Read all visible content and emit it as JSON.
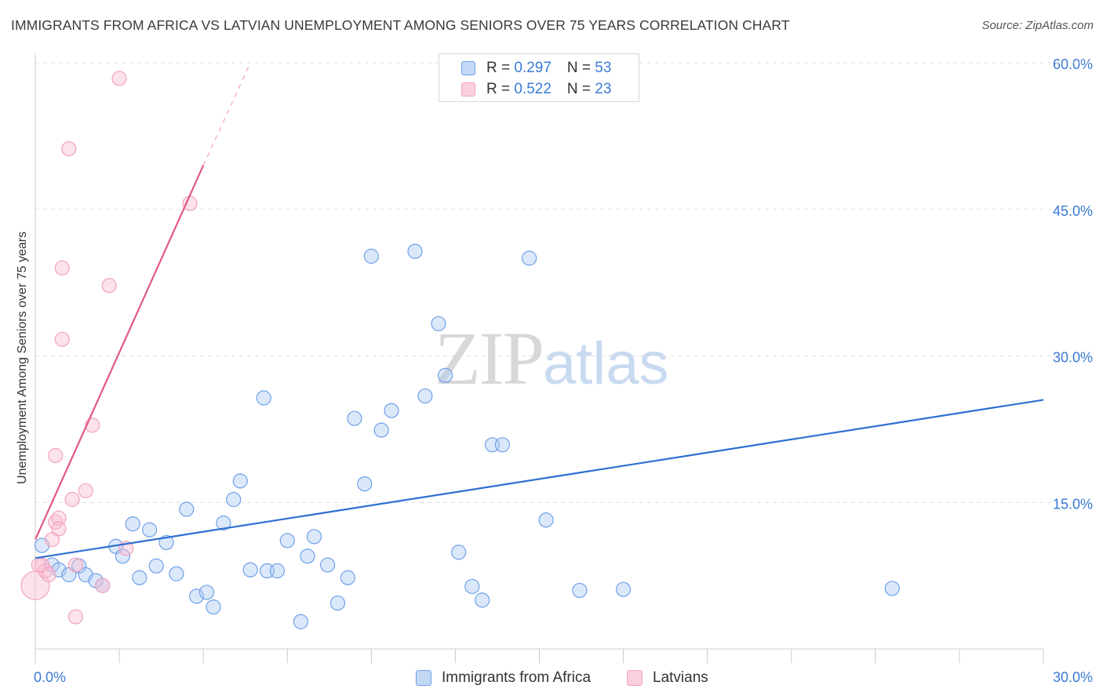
{
  "header": {
    "title": "IMMIGRANTS FROM AFRICA VS LATVIAN UNEMPLOYMENT AMONG SENIORS OVER 75 YEARS CORRELATION CHART",
    "source": "Source: ZipAtlas.com"
  },
  "watermark": {
    "zip": "ZIP",
    "atlas": "atlas"
  },
  "legend": {
    "rows": [
      {
        "r_label": "R = ",
        "r_value": "0.297",
        "n_label": "N = ",
        "n_value": "53"
      },
      {
        "r_label": "R = ",
        "r_value": "0.522",
        "n_label": "N = ",
        "n_value": "23"
      }
    ]
  },
  "bottom_legend": [
    "Immigrants from Africa",
    "Latvians"
  ],
  "chart_data": {
    "type": "scatter",
    "title": "IMMIGRANTS FROM AFRICA VS LATVIAN UNEMPLOYMENT AMONG SENIORS OVER 75 YEARS CORRELATION CHART",
    "xlabel": "",
    "ylabel": "Unemployment Among Seniors over 75 years",
    "xlim": [
      0,
      30
    ],
    "ylim": [
      0,
      60
    ],
    "x_tick_labels": [
      "0.0%",
      "30.0%"
    ],
    "y_tick_labels": [
      "15.0%",
      "30.0%",
      "45.0%",
      "60.0%"
    ],
    "y_ticks": [
      15,
      30,
      45,
      60
    ],
    "grid": "horizontal dashed",
    "colors": {
      "africa": "#6fa1e8",
      "africa_line": "#2e6fd1",
      "latvians": "#f2a3bd",
      "latvians_line": "#e0578a",
      "tick_text": "#3a7bd5"
    },
    "series": [
      {
        "name": "Immigrants from Africa",
        "r": 0.297,
        "n": 53,
        "points": [
          [
            0.2,
            10.6
          ],
          [
            0.5,
            8.6
          ],
          [
            0.7,
            8.1
          ],
          [
            1.0,
            7.6
          ],
          [
            1.3,
            8.5
          ],
          [
            1.5,
            7.6
          ],
          [
            1.8,
            7.0
          ],
          [
            2.0,
            6.5
          ],
          [
            2.4,
            10.5
          ],
          [
            2.6,
            9.5
          ],
          [
            2.9,
            12.8
          ],
          [
            3.1,
            7.3
          ],
          [
            3.4,
            12.2
          ],
          [
            3.6,
            8.5
          ],
          [
            3.9,
            10.9
          ],
          [
            4.2,
            7.7
          ],
          [
            4.5,
            14.3
          ],
          [
            4.8,
            5.4
          ],
          [
            5.1,
            5.8
          ],
          [
            5.3,
            4.3
          ],
          [
            5.6,
            12.9
          ],
          [
            5.9,
            15.3
          ],
          [
            6.1,
            17.2
          ],
          [
            6.4,
            8.1
          ],
          [
            6.8,
            25.7
          ],
          [
            6.9,
            8.0
          ],
          [
            7.2,
            8.0
          ],
          [
            7.5,
            11.1
          ],
          [
            7.9,
            2.8
          ],
          [
            8.1,
            9.5
          ],
          [
            8.3,
            11.5
          ],
          [
            8.7,
            8.6
          ],
          [
            9.0,
            4.7
          ],
          [
            9.3,
            7.3
          ],
          [
            9.5,
            23.6
          ],
          [
            9.8,
            16.9
          ],
          [
            10.0,
            40.2
          ],
          [
            10.3,
            22.4
          ],
          [
            10.6,
            24.4
          ],
          [
            11.3,
            40.7
          ],
          [
            11.6,
            25.9
          ],
          [
            12.0,
            33.3
          ],
          [
            12.2,
            28.0
          ],
          [
            12.6,
            9.9
          ],
          [
            13.0,
            6.4
          ],
          [
            13.3,
            5.0
          ],
          [
            13.6,
            20.9
          ],
          [
            13.9,
            20.9
          ],
          [
            14.7,
            40.0
          ],
          [
            15.2,
            13.2
          ],
          [
            16.2,
            6.0
          ],
          [
            17.5,
            6.1
          ],
          [
            25.5,
            6.2
          ]
        ],
        "trend": [
          [
            0,
            9.3
          ],
          [
            30,
            25.5
          ]
        ]
      },
      {
        "name": "Latvians",
        "r": 0.522,
        "n": 23,
        "points": [
          [
            0.0,
            6.5
          ],
          [
            0.2,
            8.6
          ],
          [
            0.3,
            8.0
          ],
          [
            0.4,
            7.6
          ],
          [
            0.5,
            11.2
          ],
          [
            0.6,
            13.0
          ],
          [
            0.6,
            19.8
          ],
          [
            0.7,
            13.4
          ],
          [
            0.7,
            12.3
          ],
          [
            0.8,
            39.0
          ],
          [
            0.8,
            31.7
          ],
          [
            1.0,
            51.2
          ],
          [
            1.1,
            15.3
          ],
          [
            1.2,
            8.6
          ],
          [
            1.2,
            3.3
          ],
          [
            1.5,
            16.2
          ],
          [
            1.7,
            22.9
          ],
          [
            2.0,
            6.5
          ],
          [
            2.2,
            37.2
          ],
          [
            2.5,
            58.4
          ],
          [
            2.7,
            10.3
          ],
          [
            4.6,
            45.6
          ],
          [
            0.1,
            8.6
          ]
        ],
        "trend": [
          [
            0,
            11.2
          ],
          [
            5,
            49.5
          ]
        ],
        "trend_dashed": [
          [
            5,
            49.5
          ],
          [
            6.4,
            60.0
          ]
        ]
      }
    ]
  }
}
